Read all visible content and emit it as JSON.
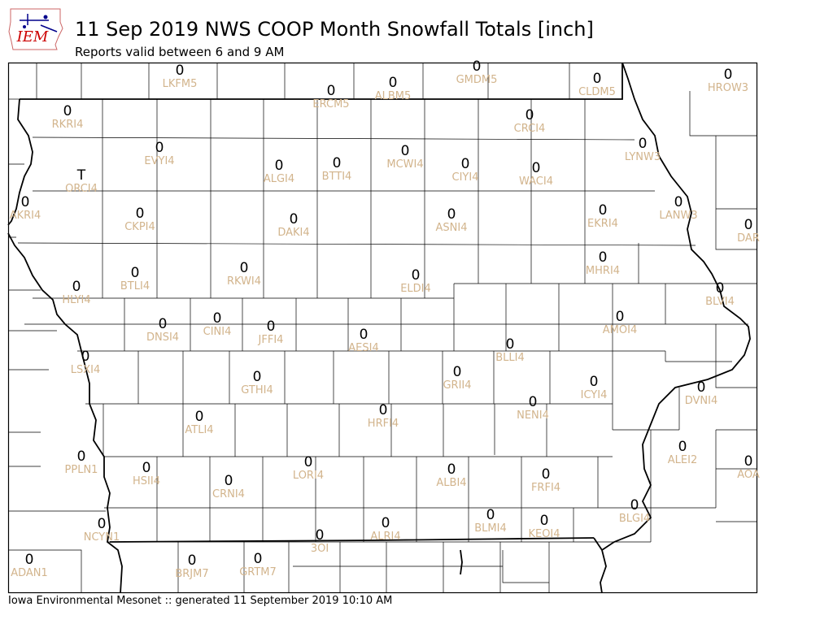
{
  "title": "11 Sep 2019 NWS COOP Month Snowfall Totals [inch]",
  "subtitle": "Reports valid between 6 and 9 AM",
  "footer": "Iowa Environmental Mesonet :: generated 11 September 2019 10:10 AM",
  "logo": {
    "text": "IEM",
    "icon": "iowa-state-outline-icon"
  },
  "colors": {
    "station_label": "#d2b48c",
    "value": "#000000",
    "map_lines": "#000000",
    "logo_text": "#cc0000",
    "logo_icon": "#00008b"
  },
  "stations": [
    {
      "id": "LKFM5",
      "value": "0"
    },
    {
      "id": "GMDM5",
      "value": "0"
    },
    {
      "id": "CLDM5",
      "value": "0"
    },
    {
      "id": "HROW3",
      "value": "0"
    },
    {
      "id": "ERCM5",
      "value": "0"
    },
    {
      "id": "ALBM5",
      "value": "0"
    },
    {
      "id": "RKRI4",
      "value": "0"
    },
    {
      "id": "CRCI4",
      "value": "0"
    },
    {
      "id": "EVYI4",
      "value": "0"
    },
    {
      "id": "LYNW3",
      "value": "0"
    },
    {
      "id": "ORCI4",
      "value": "T"
    },
    {
      "id": "ALGI4",
      "value": "0"
    },
    {
      "id": "BTTI4",
      "value": "0"
    },
    {
      "id": "MCWI4",
      "value": "0"
    },
    {
      "id": "CIYI4",
      "value": "0"
    },
    {
      "id": "WACI4",
      "value": "0"
    },
    {
      "id": "AKRI4",
      "value": "0"
    },
    {
      "id": "CKPI4",
      "value": "0"
    },
    {
      "id": "DAKI4",
      "value": "0"
    },
    {
      "id": "ASNI4",
      "value": "0"
    },
    {
      "id": "EKRI4",
      "value": "0"
    },
    {
      "id": "LANW3",
      "value": "0"
    },
    {
      "id": "DAR",
      "value": "0"
    },
    {
      "id": "BTLI4",
      "value": "0"
    },
    {
      "id": "RKWI4",
      "value": "0"
    },
    {
      "id": "ELDI4",
      "value": "0"
    },
    {
      "id": "MHRI4",
      "value": "0"
    },
    {
      "id": "HLYI4",
      "value": "0"
    },
    {
      "id": "BLVI4",
      "value": "0"
    },
    {
      "id": "DNSI4",
      "value": "0"
    },
    {
      "id": "CINI4",
      "value": "0"
    },
    {
      "id": "JFFI4",
      "value": "0"
    },
    {
      "id": "AMOI4",
      "value": "0"
    },
    {
      "id": "AESI4",
      "value": "0"
    },
    {
      "id": "BLLI4",
      "value": "0"
    },
    {
      "id": "LSXI4",
      "value": "0"
    },
    {
      "id": "GTHI4",
      "value": "0"
    },
    {
      "id": "GRII4",
      "value": "0"
    },
    {
      "id": "ICYI4",
      "value": "0"
    },
    {
      "id": "DVNI4",
      "value": "0"
    },
    {
      "id": "NENI4",
      "value": "0"
    },
    {
      "id": "HRFI4",
      "value": "0"
    },
    {
      "id": "ATLI4",
      "value": "0"
    },
    {
      "id": "ALEI2",
      "value": "0"
    },
    {
      "id": "PPLN1",
      "value": "0"
    },
    {
      "id": "HSII4",
      "value": "0"
    },
    {
      "id": "LORI4",
      "value": "0"
    },
    {
      "id": "ALBI4",
      "value": "0"
    },
    {
      "id": "FRFI4",
      "value": "0"
    },
    {
      "id": "AOA",
      "value": "0"
    },
    {
      "id": "CRNI4",
      "value": "0"
    },
    {
      "id": "BLGI4",
      "value": "0"
    },
    {
      "id": "BLMI4",
      "value": "0"
    },
    {
      "id": "KEOI4",
      "value": "0"
    },
    {
      "id": "NCYN1",
      "value": "0"
    },
    {
      "id": "ALRI4",
      "value": "0"
    },
    {
      "id": "3OI",
      "value": "0"
    },
    {
      "id": "ADAN1",
      "value": "0"
    },
    {
      "id": "BRJM7",
      "value": "0"
    },
    {
      "id": "GRTM7",
      "value": "0"
    }
  ]
}
